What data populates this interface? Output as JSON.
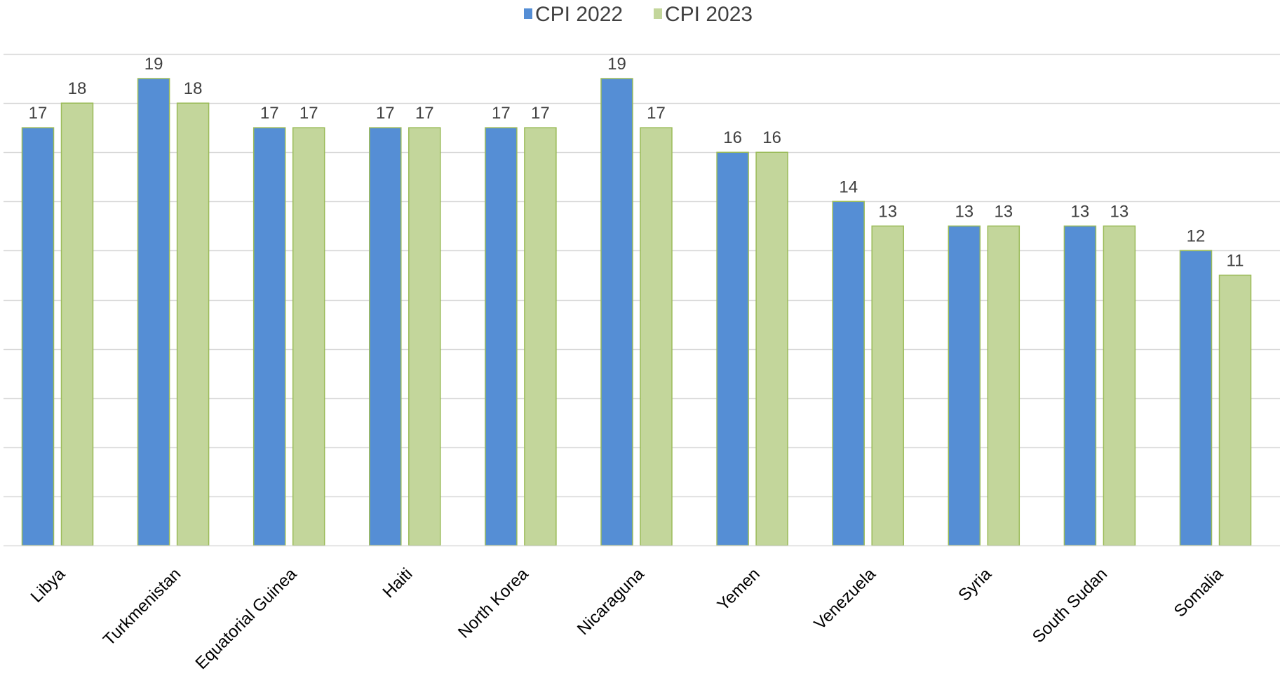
{
  "chart_data": {
    "type": "bar",
    "title": "",
    "xlabel": "",
    "ylabel": "",
    "categories": [
      "Libya",
      "Turkmenistan",
      "Equatorial Guinea",
      "Haiti",
      "North Korea",
      "Nicaraguna",
      "Yemen",
      "Venezuela",
      "Syria",
      "South Sudan",
      "Somalia"
    ],
    "series": [
      {
        "name": "CPI 2022",
        "values": [
          17,
          19,
          17,
          17,
          17,
          19,
          16,
          14,
          13,
          13,
          12
        ],
        "color": "#558ED5"
      },
      {
        "name": "CPI 2023",
        "values": [
          18,
          18,
          17,
          17,
          17,
          17,
          16,
          13,
          13,
          13,
          11
        ],
        "color": "#C3D69B"
      }
    ],
    "ylim": [
      0,
      20
    ],
    "grid": true,
    "legend": "top-center",
    "data_labels": true,
    "bar_border_color": "#9BBB59",
    "gridline_color": "#D9D9D9",
    "text_color": "#404040"
  }
}
